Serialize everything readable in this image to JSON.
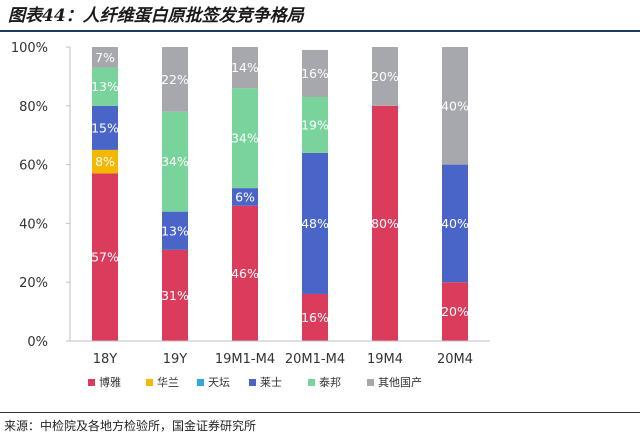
{
  "figure_title": "图表44：人纤维蛋白原批签发竞争格局",
  "source_note": "来源：中检院及各地方检验所，国金证券研究所",
  "colors": {
    "博雅": "#dc3c5c",
    "华兰": "#f5b800",
    "天坛": "#2ea8e0",
    "莱士": "#4a65c8",
    "泰邦": "#78d49a",
    "其他国产": "#a6a8ad"
  },
  "chart_data": {
    "type": "bar",
    "stacked": true,
    "categories": [
      "18Y",
      "19Y",
      "19M1-M4",
      "20M1-M4",
      "19M4",
      "20M4"
    ],
    "series": [
      {
        "name": "博雅",
        "values": [
          57,
          31,
          46,
          16,
          80,
          20
        ],
        "labels": [
          "57%",
          "31%",
          "46%",
          "16%",
          "80%",
          "20%"
        ]
      },
      {
        "name": "华兰",
        "values": [
          8,
          0,
          0,
          0,
          0,
          0
        ],
        "labels": [
          "8%",
          "",
          "",
          "",
          "",
          ""
        ]
      },
      {
        "name": "天坛",
        "values": [
          0,
          0,
          0,
          0,
          0,
          0
        ],
        "labels": [
          "",
          "",
          "",
          "",
          "",
          ""
        ]
      },
      {
        "name": "莱士",
        "values": [
          15,
          13,
          6,
          48,
          0,
          40
        ],
        "labels": [
          "15%",
          "13%",
          "6%",
          "48%",
          "",
          "40%"
        ]
      },
      {
        "name": "泰邦",
        "values": [
          13,
          34,
          34,
          19,
          0,
          0
        ],
        "labels": [
          "13%",
          "34%",
          "34%",
          "19%",
          "",
          ""
        ]
      },
      {
        "name": "其他国产",
        "values": [
          7,
          22,
          14,
          16,
          20,
          40
        ],
        "labels": [
          "7%",
          "22%",
          "14%",
          "16%",
          "20%",
          "40%"
        ]
      }
    ],
    "ylim": [
      0,
      100
    ],
    "yticks": [
      "0%",
      "20%",
      "40%",
      "60%",
      "80%",
      "100%"
    ],
    "legend": [
      "博雅",
      "华兰",
      "天坛",
      "莱士",
      "泰邦",
      "其他国产"
    ],
    "legend_position": "bottom",
    "grid": false
  }
}
